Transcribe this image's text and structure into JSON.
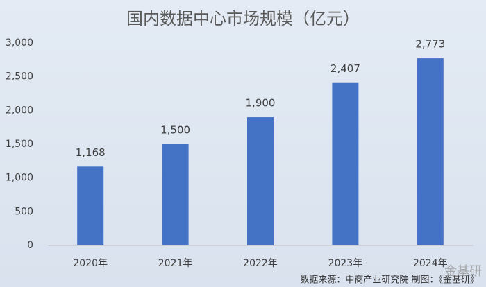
{
  "chart_data": {
    "type": "bar",
    "title": "国内数据中心市场规模（亿元）",
    "categories": [
      "2020年",
      "2021年",
      "2022年",
      "2023年",
      "2024年"
    ],
    "values": [
      1168,
      1500,
      1900,
      2407,
      2773
    ],
    "value_labels": [
      "1,168",
      "1,500",
      "1,900",
      "2,407",
      "2,773"
    ],
    "color": "#4472c4",
    "ylim": [
      0,
      3000
    ],
    "yticks": [
      0,
      500,
      {
        "value": 1000,
        "label": "1,000"
      },
      {
        "value": 1500,
        "label": "1,500"
      },
      {
        "value": 2000,
        "label": "2,000"
      },
      {
        "value": 2500,
        "label": "2,500"
      },
      {
        "value": 3000,
        "label": "3,000"
      }
    ],
    "grid": false,
    "source": "数据来源：中商产业研究院   制图：《金基研》",
    "watermark": "金基研"
  }
}
